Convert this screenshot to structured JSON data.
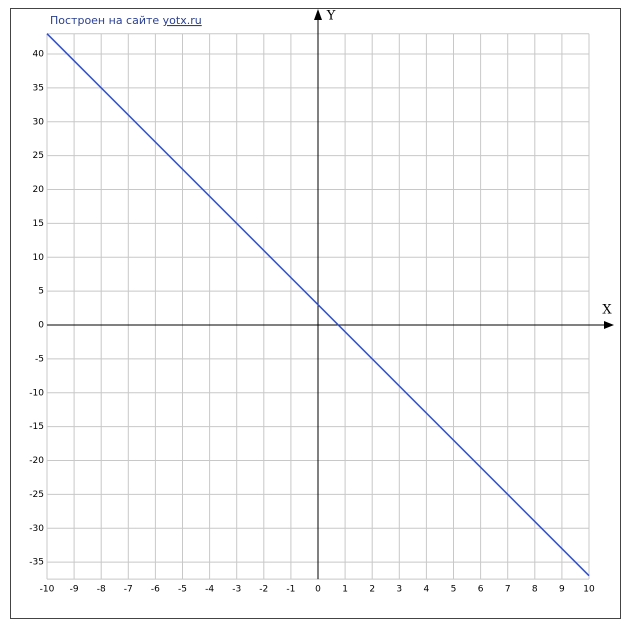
{
  "chart_data": {
    "type": "line",
    "credit": {
      "text": "Построен на сайте",
      "link": "yotx.ru"
    },
    "x_label": "X",
    "y_label": "Y",
    "x": [
      -10,
      10
    ],
    "values": [
      43,
      -37
    ],
    "color": "#2f4fd0",
    "xlim": [
      -10,
      10
    ],
    "ylim": [
      -37.5,
      43
    ],
    "xticks": [
      -10,
      -9,
      -8,
      -7,
      -6,
      -5,
      -4,
      -3,
      -2,
      -1,
      0,
      1,
      2,
      3,
      4,
      5,
      6,
      7,
      8,
      9,
      10
    ],
    "yticks": [
      -35,
      -30,
      -25,
      -20,
      -15,
      -10,
      -5,
      0,
      5,
      10,
      15,
      20,
      25,
      30,
      35,
      40
    ],
    "grid": true
  }
}
